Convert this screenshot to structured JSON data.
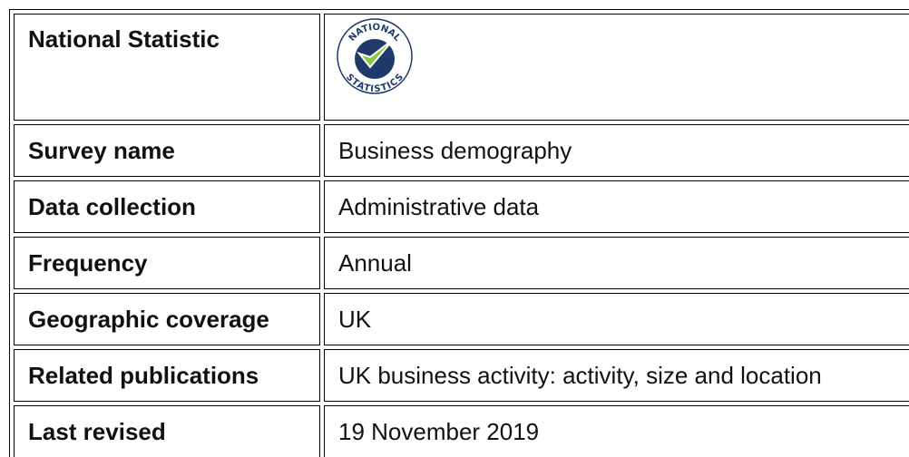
{
  "logo": {
    "top": "NATIONAL",
    "bottom": "STATISTICS"
  },
  "table": {
    "rows": [
      [
        "National Statistic",
        null
      ],
      [
        "Survey name",
        "Business demography"
      ],
      [
        "Data collection",
        "Administrative data"
      ],
      [
        "Frequency",
        "Annual"
      ],
      [
        "Geographic coverage",
        "UK"
      ],
      [
        "Related publications",
        "UK business activity: activity, size and location"
      ],
      [
        "Last revised",
        "19 November 2019"
      ]
    ]
  }
}
